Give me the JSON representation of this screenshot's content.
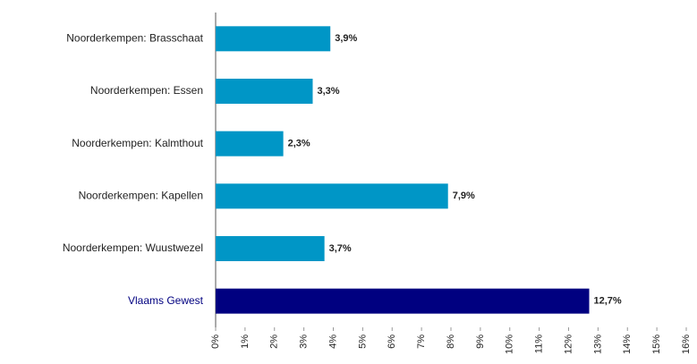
{
  "chart_data": {
    "type": "bar",
    "orientation": "horizontal",
    "categories": [
      "Noorderkempen: Brasschaat",
      "Noorderkempen: Essen",
      "Noorderkempen: Kalmthout",
      "Noorderkempen: Kapellen",
      "Noorderkempen: Wuustwezel",
      "Vlaams Gewest"
    ],
    "values": [
      3.9,
      3.3,
      2.3,
      7.9,
      3.7,
      12.7
    ],
    "value_labels": [
      "3,9%",
      "3,3%",
      "2,3%",
      "7,9%",
      "3,7%",
      "12,7%"
    ],
    "colors": [
      "#0096c6",
      "#0096c6",
      "#0096c6",
      "#0096c6",
      "#0096c6",
      "#000080"
    ],
    "label_colors": [
      "#222222",
      "#222222",
      "#222222",
      "#222222",
      "#222222",
      "#000080"
    ],
    "xlim": [
      0,
      16
    ],
    "xticks": [
      {
        "value": 0,
        "label": "0%"
      },
      {
        "value": 1,
        "label": "1%"
      },
      {
        "value": 2,
        "label": "2%"
      },
      {
        "value": 3,
        "label": "3%"
      },
      {
        "value": 4,
        "label": "4%"
      },
      {
        "value": 5,
        "label": "5%"
      },
      {
        "value": 6,
        "label": "6%"
      },
      {
        "value": 7,
        "label": "7%"
      },
      {
        "value": 8,
        "label": "8%"
      },
      {
        "value": 9,
        "label": "9%"
      },
      {
        "value": 10,
        "label": "10%"
      },
      {
        "value": 11,
        "label": "11%"
      },
      {
        "value": 12,
        "label": "12%"
      },
      {
        "value": 13,
        "label": "13%"
      },
      {
        "value": 14,
        "label": "14%"
      },
      {
        "value": 15,
        "label": "15%"
      },
      {
        "value": 16,
        "label": "16%"
      }
    ]
  }
}
